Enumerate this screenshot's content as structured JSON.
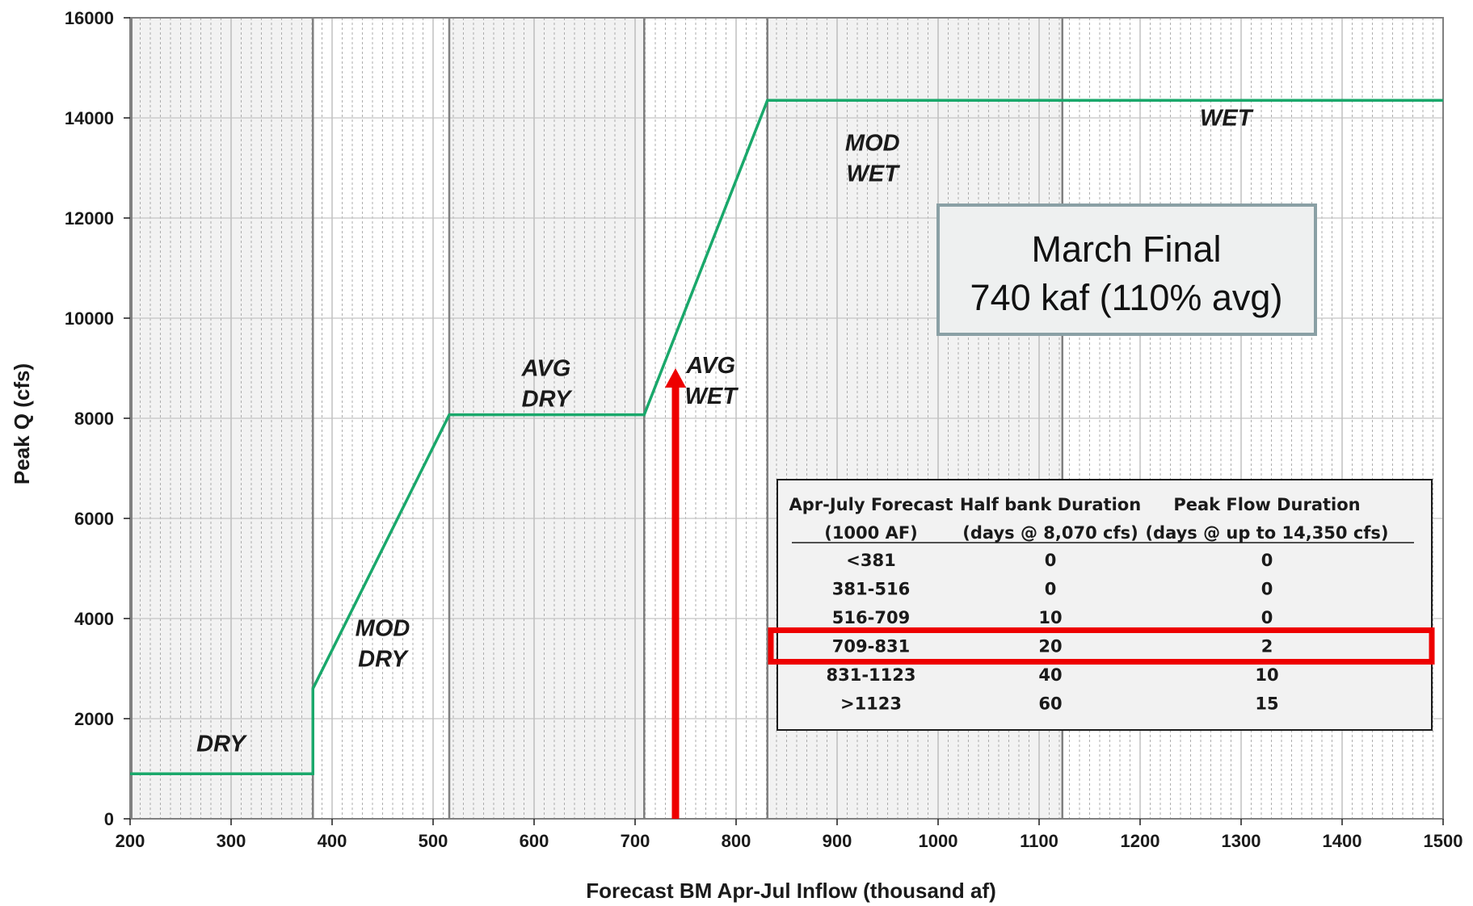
{
  "chart_data": {
    "type": "line",
    "xlabel": "Forecast BM Apr-Jul Inflow (thousand af)",
    "ylabel": "Peak Q (cfs)",
    "xlim": [
      200,
      1500
    ],
    "ylim": [
      0,
      16000
    ],
    "xticks": [
      200,
      300,
      400,
      500,
      600,
      700,
      800,
      900,
      1000,
      1100,
      1200,
      1300,
      1400,
      1500
    ],
    "yticks": [
      0,
      2000,
      4000,
      6000,
      8000,
      10000,
      12000,
      14000,
      16000
    ],
    "grid": true,
    "legend": "none",
    "line_color": "#1aa86b",
    "series": [
      {
        "x": [
          200,
          381,
          381,
          516,
          709,
          831,
          1500
        ],
        "y": [
          900,
          900,
          2600,
          8070,
          8070,
          14350,
          14350
        ]
      }
    ],
    "zones": [
      {
        "from": 200,
        "to": 381,
        "label": "DRY",
        "shaded": true,
        "label_x": 290,
        "label_y": 1350
      },
      {
        "from": 381,
        "to": 516,
        "label": "MOD DRY",
        "shaded": false,
        "label_x": 450,
        "label_y": 3650
      },
      {
        "from": 516,
        "to": 709,
        "label": "AVG DRY",
        "shaded": true,
        "label_x": 612,
        "label_y": 8850
      },
      {
        "from": 709,
        "to": 831,
        "label": "AVG WET",
        "shaded": false,
        "label_x": 775,
        "label_y": 8900
      },
      {
        "from": 831,
        "to": 1123,
        "label": "MOD WET",
        "shaded": true,
        "label_x": 935,
        "label_y": 13350
      },
      {
        "from": 1123,
        "to": 1500,
        "label": "WET",
        "shaded": false,
        "label_x": 1285,
        "label_y": 13850
      }
    ],
    "marker": {
      "x": 740,
      "y_from": 0,
      "y_to": 9000,
      "color": "#ee0000"
    },
    "callout": {
      "line1": "March Final",
      "line2": "740 kaf (110% avg)"
    },
    "table": {
      "headers": [
        [
          "Apr-July Forecast",
          "(1000 AF)"
        ],
        [
          "Half bank Duration",
          "(days @ 8,070 cfs)"
        ],
        [
          "Peak Flow Duration",
          "(days @ up to 14,350 cfs)"
        ]
      ],
      "rows": [
        [
          "<381",
          "0",
          "0"
        ],
        [
          "381-516",
          "0",
          "0"
        ],
        [
          "516-709",
          "10",
          "0"
        ],
        [
          "709-831",
          "20",
          "2"
        ],
        [
          "831-1123",
          "40",
          "10"
        ],
        [
          ">1123",
          "60",
          "15"
        ]
      ],
      "highlighted_row": 3,
      "highlight_color": "#ee0000"
    }
  }
}
